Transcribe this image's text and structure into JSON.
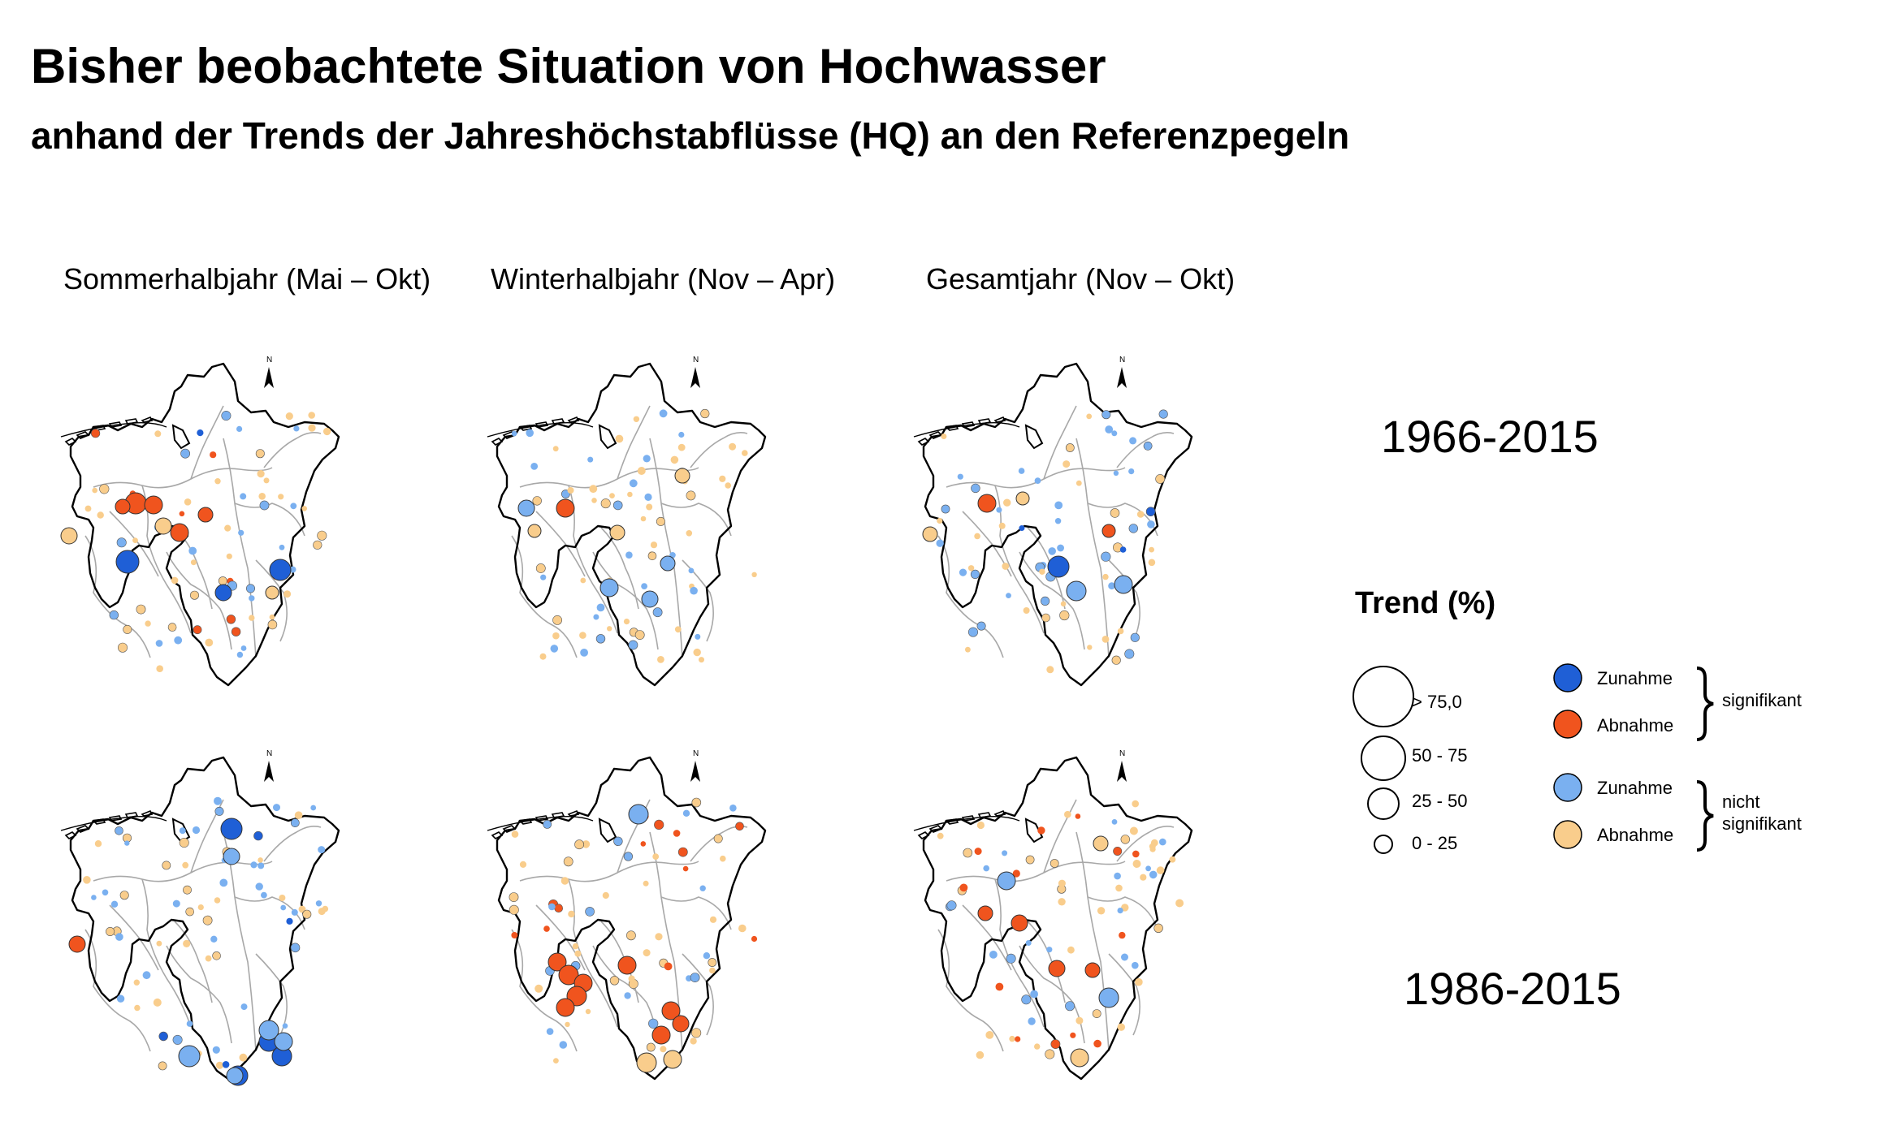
{
  "title": "Bisher beobachtete Situation von Hochwasser",
  "subtitle": "anhand der Trends der Jahreshöchstabflüsse (HQ) an den Referenzpegeln",
  "columns": [
    "Sommerhalbjahr (Mai – Okt)",
    "Winterhalbjahr (Nov – Apr)",
    "Gesamtjahr (Nov – Okt)"
  ],
  "periods": [
    "1966-2015",
    "1986-2015"
  ],
  "north_label": "N",
  "legend": {
    "title": "Trend (%)",
    "sizes": [
      "> 75,0",
      "50 - 75",
      "25 - 50",
      "0 - 25"
    ],
    "categories": {
      "sig_increase": "Zunahme",
      "sig_decrease": "Abnahme",
      "nonsig_increase": "Zunahme",
      "nonsig_decrease": "Abnahme"
    },
    "groups": {
      "significant": "signifikant",
      "not_significant_1": "nicht",
      "not_significant_2": "signifikant"
    }
  },
  "colors": {
    "sig_increase": "#1f5fd6",
    "sig_decrease": "#f0541e",
    "nonsig_increase": "#7ab0f0",
    "nonsig_decrease": "#f9cd8c",
    "outline": "#000000",
    "rivers": "#a8a8a8"
  }
}
